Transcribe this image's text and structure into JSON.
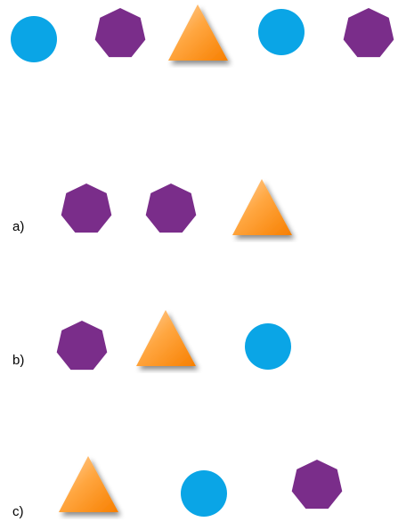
{
  "colors": {
    "circle": "#0aa5e6",
    "heptagon": "#7a2d8a",
    "triangle_light": "#ffd3a3",
    "triangle_mid": "#ffa640",
    "triangle_dark": "#f77f00"
  },
  "sequence": [
    "circle",
    "heptagon",
    "triangle",
    "circle",
    "heptagon"
  ],
  "options": [
    {
      "label": "a)",
      "shapes": [
        "heptagon",
        "heptagon",
        "triangle"
      ]
    },
    {
      "label": "b)",
      "shapes": [
        "heptagon",
        "triangle",
        "circle"
      ]
    },
    {
      "label": "c)",
      "shapes": [
        "triangle",
        "circle",
        "heptagon"
      ]
    }
  ]
}
